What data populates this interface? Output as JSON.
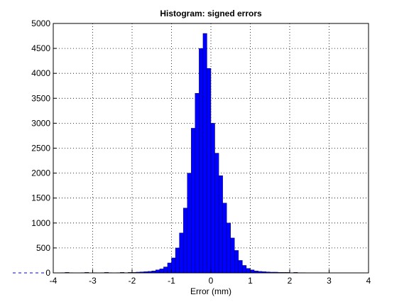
{
  "chart_data": {
    "type": "histogram",
    "title": "Histogram: signed errors",
    "x_label": "Error (mm)",
    "bins": [
      -4.0,
      -3.9,
      -3.8,
      -3.7,
      -3.6,
      -3.5,
      -3.4,
      -3.3,
      -3.2,
      -3.1,
      -3.0,
      -2.9,
      -2.8,
      -2.7,
      -2.6,
      -2.5,
      -2.4,
      -2.3,
      -2.2,
      -2.1,
      -2.0,
      -1.9,
      -1.8,
      -1.7,
      -1.6,
      -1.5,
      -1.4,
      -1.3,
      -1.2,
      -1.1,
      -1.0,
      -0.9,
      -0.8,
      -0.7,
      -0.6,
      -0.5,
      -0.4,
      -0.3,
      -0.2,
      -0.1,
      0.0,
      0.1,
      0.2,
      0.3,
      0.4,
      0.5,
      0.6,
      0.7,
      0.8,
      0.9,
      1.0,
      1.1,
      1.2,
      1.3,
      1.4,
      1.5,
      1.6,
      1.7,
      1.8,
      1.9,
      2.0,
      2.1,
      2.2,
      2.3,
      2.4
    ],
    "values": [
      0,
      0,
      5,
      10,
      5,
      0,
      0,
      5,
      10,
      0,
      5,
      0,
      5,
      10,
      5,
      0,
      5,
      10,
      5,
      10,
      10,
      15,
      20,
      25,
      30,
      40,
      60,
      80,
      120,
      200,
      300,
      500,
      800,
      1300,
      2000,
      2900,
      3600,
      4500,
      4800,
      4100,
      3000,
      2400,
      1950,
      1400,
      1000,
      700,
      450,
      250,
      150,
      90,
      60,
      40,
      30,
      25,
      20,
      15,
      15,
      10,
      10,
      10,
      5,
      10,
      5,
      5
    ],
    "color": "#0000ff",
    "xlim": [
      -4,
      4
    ],
    "xticks": [
      -4,
      -3,
      -2,
      -1,
      0,
      1,
      2,
      3,
      4
    ],
    "ylim": [
      0,
      5000
    ],
    "yticks": [
      0,
      500,
      1000,
      1500,
      2000,
      2500,
      3000,
      3500,
      4000,
      4500,
      5000
    ],
    "grid": true
  }
}
